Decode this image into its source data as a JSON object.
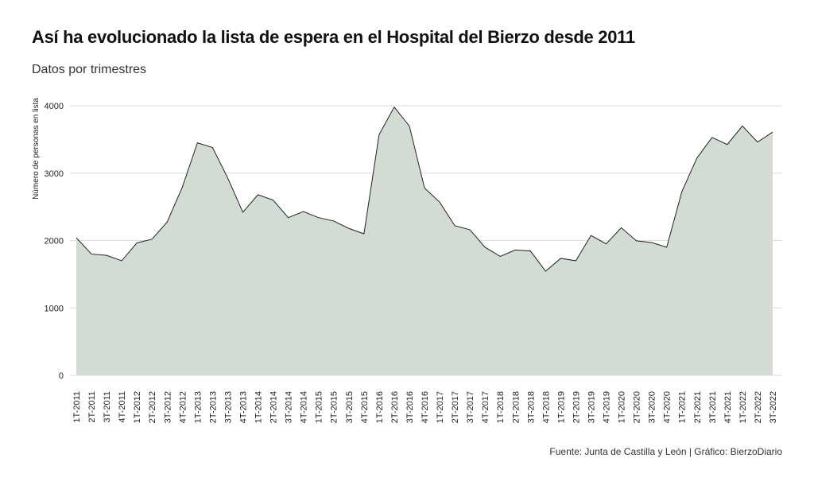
{
  "header": {
    "title": "Así ha evolucionado la lista de espera en el Hospital del Bierzo desde 2011",
    "subtitle": "Datos por trimestres"
  },
  "footer": {
    "source": "Fuente: Junta de Castilla y León | Gráfico: BierzoDiario"
  },
  "colors": {
    "area_fill": "#d3dcd2",
    "line": "#222222",
    "grid": "#dddddd"
  },
  "chart_data": {
    "type": "area",
    "title": "Así ha evolucionado la lista de espera en el Hospital del Bierzo desde 2011",
    "subtitle": "Datos por trimestres",
    "xlabel": "",
    "ylabel": "Número de personas en lista",
    "ylim": [
      0,
      4000
    ],
    "yticks": [
      0,
      1000,
      2000,
      3000,
      4000
    ],
    "grid": true,
    "legend": "none",
    "categories": [
      "1T-2011",
      "2T-2011",
      "3T-2011",
      "4T-2011",
      "1T-2012",
      "2T-2012",
      "3T-2012",
      "4T-2012",
      "1T-2013",
      "2T-2013",
      "3T-2013",
      "4T-2013",
      "1T-2014",
      "2T-2014",
      "3T-2014",
      "4T-2014",
      "1T-2015",
      "2T-2015",
      "3T-2015",
      "4T-2015",
      "1T-2016",
      "2T-2016",
      "3T-2016",
      "4T-2016",
      "1T-2017",
      "2T-2017",
      "3T-2017",
      "4T-2017",
      "1T-2018",
      "2T-2018",
      "3T-2018",
      "4T-2018",
      "1T-2019",
      "2T-2019",
      "3T-2019",
      "4T-2019",
      "1T-2020",
      "2T-2020",
      "3T-2020",
      "4T-2020",
      "1T-2021",
      "2T-2021",
      "3T-2021",
      "4T-2021",
      "1T-2022",
      "2T-2022",
      "3T-2022"
    ],
    "values": [
      2040,
      1800,
      1780,
      1700,
      1965,
      2020,
      2275,
      2790,
      3450,
      3380,
      2930,
      2420,
      2680,
      2600,
      2340,
      2430,
      2340,
      2290,
      2180,
      2100,
      3570,
      3980,
      3700,
      2780,
      2570,
      2220,
      2160,
      1900,
      1765,
      1860,
      1845,
      1545,
      1735,
      1700,
      2075,
      1950,
      2190,
      1995,
      1970,
      1900,
      2725,
      3225,
      3530,
      3425,
      3700,
      3460,
      3610
    ]
  }
}
